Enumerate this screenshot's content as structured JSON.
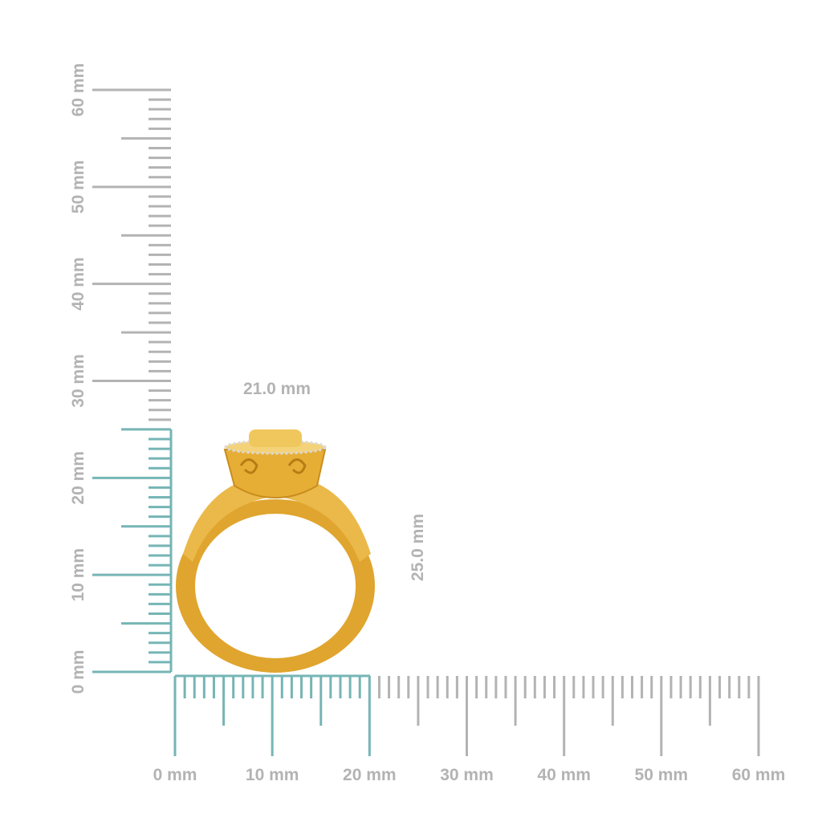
{
  "horizontal_ruler": {
    "labels": [
      "0 mm",
      "10 mm",
      "20 mm",
      "30 mm",
      "40 mm",
      "50 mm",
      "60 mm"
    ]
  },
  "vertical_ruler": {
    "labels": [
      "0 mm",
      "10 mm",
      "20 mm",
      "30 mm",
      "40 mm",
      "50 mm",
      "60 mm"
    ]
  },
  "dimensions": {
    "width": "21.0 mm",
    "height": "25.0 mm"
  }
}
